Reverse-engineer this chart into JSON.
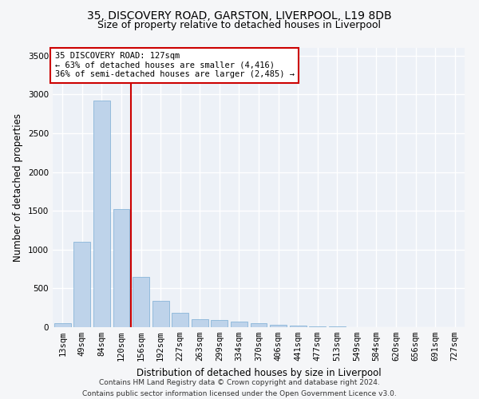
{
  "title_line1": "35, DISCOVERY ROAD, GARSTON, LIVERPOOL, L19 8DB",
  "title_line2": "Size of property relative to detached houses in Liverpool",
  "xlabel": "Distribution of detached houses by size in Liverpool",
  "ylabel": "Number of detached properties",
  "categories": [
    "13sqm",
    "49sqm",
    "84sqm",
    "120sqm",
    "156sqm",
    "192sqm",
    "227sqm",
    "263sqm",
    "299sqm",
    "334sqm",
    "370sqm",
    "406sqm",
    "441sqm",
    "477sqm",
    "513sqm",
    "549sqm",
    "584sqm",
    "620sqm",
    "656sqm",
    "691sqm",
    "727sqm"
  ],
  "values": [
    50,
    1100,
    2920,
    1520,
    650,
    340,
    190,
    100,
    90,
    70,
    55,
    30,
    20,
    15,
    10,
    5,
    5,
    2,
    2,
    1,
    1
  ],
  "bar_color": "#bed3ea",
  "bar_edge_color": "#7aadd4",
  "annotation_line1": "35 DISCOVERY ROAD: 127sqm",
  "annotation_line2": "← 63% of detached houses are smaller (4,416)",
  "annotation_line3": "36% of semi-detached houses are larger (2,485) →",
  "red_line_after_index": 3,
  "ylim": [
    0,
    3600
  ],
  "yticks": [
    0,
    500,
    1000,
    1500,
    2000,
    2500,
    3000,
    3500
  ],
  "red_line_color": "#cc0000",
  "annotation_bg": "#ffffff",
  "annotation_edge": "#cc0000",
  "footer_line1": "Contains HM Land Registry data © Crown copyright and database right 2024.",
  "footer_line2": "Contains public sector information licensed under the Open Government Licence v3.0.",
  "bg_color": "#edf1f7",
  "grid_color": "#ffffff",
  "title1_fontsize": 10,
  "title2_fontsize": 9,
  "axis_label_fontsize": 8.5,
  "tick_fontsize": 7.5,
  "annotation_fontsize": 7.5,
  "footer_fontsize": 6.5
}
